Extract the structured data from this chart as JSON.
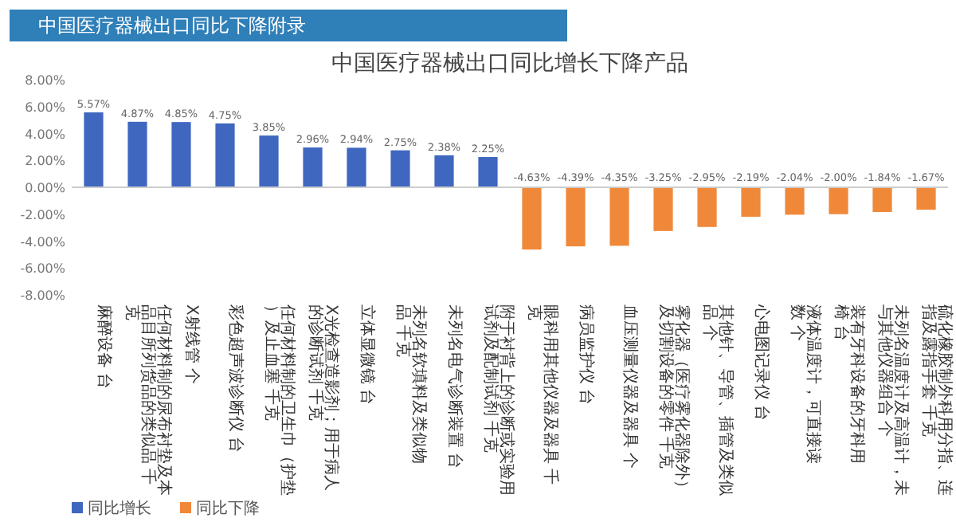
{
  "chart_data": {
    "type": "bar",
    "title": "中国医疗器械出口同比增长下降产品",
    "annotations": [
      "中国医疗器械出口同比下降附录"
    ],
    "categories": [
      "麻醉设备 台",
      "任何材料制的尿布衬垫及本品目所列货品的类似品 千克",
      "X射线管 个",
      "彩色超声波诊断仪 台",
      "任何材料制的卫生巾（护垫）及止血塞 千克",
      "X光检查造影剂；用于病人的诊断试剂 千克",
      "立体显微镜 台",
      "未列名软填料及类似物品 千克",
      "未列名电气诊断装置 台",
      "附于衬背上的诊断或实验用试剂及配制试剂 千克",
      "眼科用其他仪器及器具 千克",
      "病员监护仪 台",
      "血压测量仪器及器具 个",
      "雾化器（医疗雾化器除外）及切割设备的零件 千克",
      "其他针、导管、插管及类似品 个",
      "心电图记录仪 台",
      "液体温度计，可直接读数 个",
      "装有牙科设备的牙科用椅 台",
      "未列名温度计及高温计，未与其他仪器组合 个",
      "硫化橡胶制外科用分指、连指及露指手套 千克"
    ],
    "series": [
      {
        "name": "同比增长",
        "color": "#3f67c0",
        "values": [
          5.57,
          4.87,
          4.85,
          4.75,
          3.85,
          2.96,
          2.94,
          2.75,
          2.38,
          2.25,
          null,
          null,
          null,
          null,
          null,
          null,
          null,
          null,
          null,
          null
        ],
        "value_labels": [
          "5.57%",
          "4.87%",
          "4.85%",
          "4.75%",
          "3.85%",
          "2.96%",
          "2.94%",
          "2.75%",
          "2.38%",
          "2.25%",
          null,
          null,
          null,
          null,
          null,
          null,
          null,
          null,
          null,
          null
        ]
      },
      {
        "name": "同比下降",
        "color": "#f0883a",
        "values": [
          null,
          null,
          null,
          null,
          null,
          null,
          null,
          null,
          null,
          null,
          -4.63,
          -4.39,
          -4.35,
          -3.25,
          -2.95,
          -2.19,
          -2.04,
          -2.0,
          -1.84,
          -1.67
        ],
        "value_labels": [
          null,
          null,
          null,
          null,
          null,
          null,
          null,
          null,
          null,
          null,
          "-4.63%",
          "-4.39%",
          "-4.35%",
          "-3.25%",
          "-2.95%",
          "-2.19%",
          "-2.04%",
          "-2.00%",
          "-1.84%",
          "-1.67%"
        ]
      }
    ],
    "ylim": [
      -8,
      8
    ],
    "yticks": [
      {
        "value": -8,
        "label": "-8.00%"
      },
      {
        "value": -6,
        "label": "-6.00%"
      },
      {
        "value": -4,
        "label": "-4.00%"
      },
      {
        "value": -2,
        "label": "-2.00%"
      },
      {
        "value": 0,
        "label": "0.00%"
      },
      {
        "value": 2,
        "label": "2.00%"
      },
      {
        "value": 4,
        "label": "4.00%"
      },
      {
        "value": 6,
        "label": "6.00%"
      },
      {
        "value": 8,
        "label": "8.00%"
      }
    ],
    "legend": "bottom"
  }
}
